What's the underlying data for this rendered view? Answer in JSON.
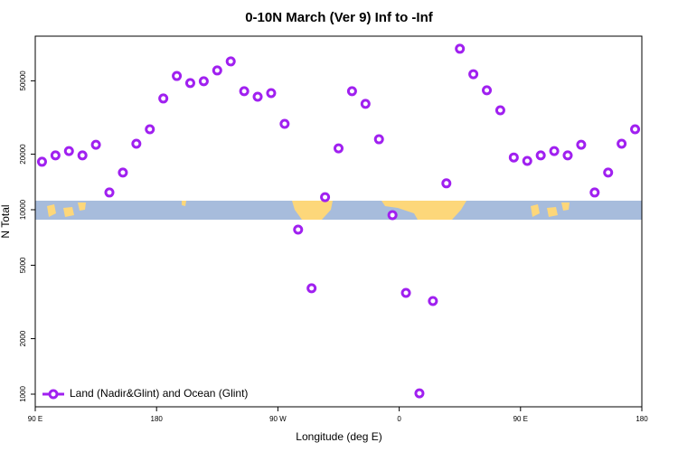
{
  "chart_data": {
    "type": "scatter",
    "title": "0-10N March (Ver 9)   Inf to -Inf",
    "x_label": "Longitude (deg E)",
    "y_label": "N Total",
    "ylog": true,
    "legend_position": "bottom-left",
    "xlim": [
      90,
      540
    ],
    "ylim": [
      854,
      87300
    ],
    "xticks": [
      {
        "value": 90,
        "label": "90 E"
      },
      {
        "value": 180,
        "label": "180"
      },
      {
        "value": 270,
        "label": "90 W"
      },
      {
        "value": 360,
        "label": "0"
      },
      {
        "value": 450,
        "label": "90 E"
      },
      {
        "value": 540,
        "label": "180"
      }
    ],
    "yticks": [
      1000,
      2000,
      5000,
      10000,
      20000,
      50000
    ],
    "series": [
      {
        "name": "Land (Nadir&Glint) and Ocean (Glint)",
        "color": "#a020f0",
        "x": [
          95,
          105,
          115,
          125,
          135,
          145,
          155,
          165,
          175,
          185,
          195,
          205,
          215,
          225,
          235,
          245,
          255,
          265,
          275,
          285,
          295,
          305,
          315,
          325,
          335,
          345,
          355,
          365,
          375,
          385,
          395,
          405,
          415,
          425,
          435,
          445,
          455,
          465,
          475,
          485,
          495,
          505,
          515,
          525,
          535
        ],
        "values": [
          18200,
          19700,
          20800,
          19700,
          22500,
          12400,
          15900,
          22800,
          27300,
          40100,
          53100,
          48600,
          49700,
          56900,
          63700,
          43900,
          41000,
          42900,
          29200,
          7800,
          3750,
          11700,
          21500,
          43900,
          37500,
          24100,
          9350,
          3540,
          1010,
          3200,
          13900,
          74600,
          54300,
          44400,
          34600,
          19200,
          18400,
          19700,
          20800,
          19700,
          22500,
          12400,
          15900,
          22800,
          27300
        ]
      }
    ]
  }
}
